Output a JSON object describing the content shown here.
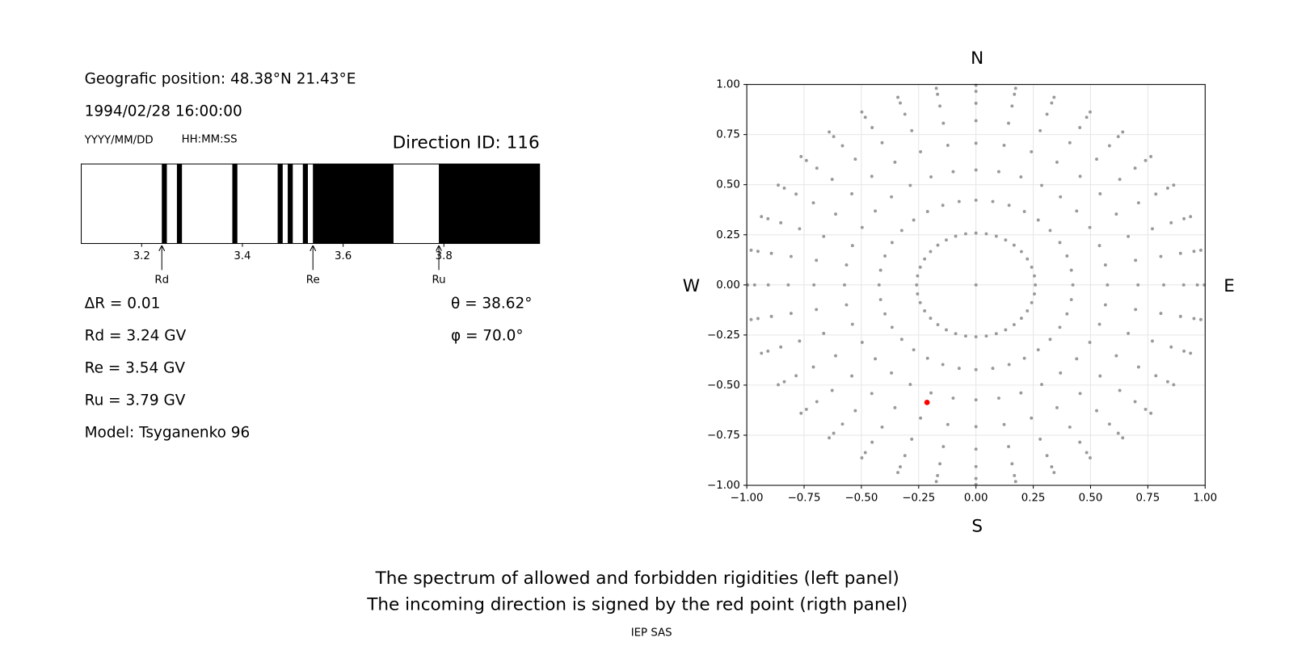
{
  "header": {
    "position": "Geografic position: 48.38°N 21.43°E",
    "datetime": "1994/02/28 16:00:00",
    "date_format": "YYYY/MM/DD",
    "time_format": "HH:MM:SS"
  },
  "parameters": [
    "ΔR = 0.01",
    "Rd = 3.24 GV",
    "Re = 3.54 GV",
    "Ru = 3.79 GV",
    "Model: Tsyganenko 96"
  ],
  "chart_data": [
    {
      "type": "spectrum",
      "title": "Direction ID: 116",
      "xlim": [
        3.08,
        3.99
      ],
      "xticks": [
        3.2,
        3.4,
        3.6,
        3.8
      ],
      "color": "#000000",
      "forbidden": [
        [
          3.24,
          3.25
        ],
        [
          3.27,
          3.28
        ],
        [
          3.38,
          3.39
        ],
        [
          3.47,
          3.48
        ],
        [
          3.49,
          3.5
        ],
        [
          3.52,
          3.53
        ],
        [
          3.54,
          3.7
        ],
        [
          3.79,
          3.99
        ]
      ],
      "markers": [
        {
          "label": "Rd",
          "value": 3.24
        },
        {
          "label": "Re",
          "value": 3.54
        },
        {
          "label": "Ru",
          "value": 3.79
        }
      ]
    },
    {
      "type": "sky",
      "directions": {
        "north": "N",
        "south": "S",
        "west": "W",
        "east": "E"
      },
      "info": [
        "θ = 38.62°",
        "φ = 70.0°"
      ],
      "grid": true,
      "xlim": [
        -1,
        1
      ],
      "ylim": [
        -1,
        1
      ],
      "xticks": [
        {
          "value": -1,
          "label": "−1.00"
        },
        {
          "value": -0.75,
          "label": "−0.75"
        },
        {
          "value": -0.5,
          "label": "−0.50"
        },
        {
          "value": -0.25,
          "label": "−0.25"
        },
        {
          "value": 0,
          "label": "0.00"
        },
        {
          "value": 0.25,
          "label": "0.25"
        },
        {
          "value": 0.5,
          "label": "0.50"
        },
        {
          "value": 0.75,
          "label": "0.75"
        },
        {
          "value": 1,
          "label": "1.00"
        }
      ],
      "yticks": [
        {
          "value": -1,
          "label": "−1.00"
        },
        {
          "value": -0.75,
          "label": "−0.75"
        },
        {
          "value": -0.5,
          "label": "−0.50"
        },
        {
          "value": -0.25,
          "label": "−0.25"
        },
        {
          "value": 0,
          "label": "0.00"
        },
        {
          "value": 0.25,
          "label": "0.25"
        },
        {
          "value": 0.5,
          "label": "0.50"
        },
        {
          "value": 0.75,
          "label": "0.75"
        },
        {
          "value": 1,
          "label": "1.00"
        }
      ],
      "series": [
        {
          "color": "#999999",
          "theta": [
            0,
            15,
            25,
            35,
            45,
            55,
            65,
            75,
            85,
            15,
            25,
            35,
            45,
            55,
            65,
            75,
            85,
            15,
            25,
            35,
            45,
            55,
            65,
            75,
            85,
            15,
            25,
            35,
            45,
            55,
            65,
            75,
            85,
            15,
            25,
            35,
            45,
            55,
            65,
            75,
            85,
            15,
            25,
            35,
            45,
            55,
            65,
            75,
            85,
            15,
            25,
            35,
            45,
            55,
            65,
            75,
            85,
            15,
            25,
            35,
            45,
            55,
            65,
            75,
            85,
            15,
            25,
            35,
            45,
            55,
            65,
            75,
            85,
            15,
            25,
            35,
            45,
            55,
            65,
            75,
            85,
            15,
            25,
            35,
            45,
            55,
            65,
            75,
            85,
            15,
            25,
            35,
            45,
            55,
            65,
            75,
            85,
            15,
            25,
            35,
            45,
            55,
            65,
            75,
            85,
            15,
            25,
            35,
            45,
            55,
            65,
            75,
            85,
            15,
            25,
            35,
            45,
            55,
            65,
            75,
            85,
            15,
            25,
            35,
            45,
            55,
            65,
            75,
            85,
            15,
            25,
            35,
            45,
            55,
            65,
            75,
            85,
            15,
            25,
            35,
            45,
            55,
            65,
            75,
            85,
            15,
            25,
            35,
            45,
            55,
            65,
            75,
            85,
            15,
            25,
            35,
            45,
            55,
            65,
            75,
            85,
            15,
            25,
            35,
            45,
            55,
            65,
            75,
            85,
            15,
            25,
            35,
            45,
            55,
            65,
            75,
            85,
            15,
            25,
            35,
            45,
            55,
            65,
            75,
            85,
            15,
            25,
            35,
            45,
            55,
            65,
            75,
            85,
            15,
            25,
            35,
            45,
            55,
            65,
            75,
            85,
            15,
            25,
            35,
            45,
            55,
            65,
            75,
            85,
            15,
            25,
            35,
            45,
            55,
            65,
            75,
            85,
            15,
            25,
            35,
            45,
            55,
            65,
            75,
            85,
            15,
            25,
            35,
            45,
            55,
            65,
            75,
            85,
            15,
            25,
            35,
            45,
            55,
            65,
            75,
            85,
            15,
            25,
            35,
            45,
            55,
            65,
            75,
            85,
            15,
            25,
            35,
            45,
            55,
            65,
            75,
            85,
            15,
            25,
            35,
            45,
            55,
            65,
            75,
            85,
            15,
            25,
            35,
            45,
            55,
            65,
            75,
            85,
            15,
            25,
            35,
            45,
            55,
            65,
            75,
            85,
            15,
            25,
            35,
            45,
            55,
            65,
            75,
            85
          ],
          "phi": [
            0,
            0,
            0,
            0,
            0,
            0,
            0,
            0,
            0,
            10,
            10,
            10,
            10,
            10,
            10,
            10,
            10,
            20,
            20,
            20,
            20,
            20,
            20,
            20,
            20,
            30,
            30,
            30,
            30,
            30,
            30,
            30,
            30,
            40,
            40,
            40,
            40,
            40,
            40,
            40,
            40,
            50,
            50,
            50,
            50,
            50,
            50,
            50,
            50,
            60,
            60,
            60,
            60,
            60,
            60,
            60,
            60,
            70,
            70,
            70,
            70,
            70,
            70,
            70,
            70,
            80,
            80,
            80,
            80,
            80,
            80,
            80,
            80,
            90,
            90,
            90,
            90,
            90,
            90,
            90,
            90,
            100,
            100,
            100,
            100,
            100,
            100,
            100,
            100,
            110,
            110,
            110,
            110,
            110,
            110,
            110,
            110,
            120,
            120,
            120,
            120,
            120,
            120,
            120,
            120,
            130,
            130,
            130,
            130,
            130,
            130,
            130,
            130,
            140,
            140,
            140,
            140,
            140,
            140,
            140,
            140,
            150,
            150,
            150,
            150,
            150,
            150,
            150,
            150,
            160,
            160,
            160,
            160,
            160,
            160,
            160,
            160,
            170,
            170,
            170,
            170,
            170,
            170,
            170,
            170,
            180,
            180,
            180,
            180,
            180,
            180,
            180,
            180,
            190,
            190,
            190,
            190,
            190,
            190,
            190,
            190,
            200,
            200,
            200,
            200,
            200,
            200,
            200,
            200,
            210,
            210,
            210,
            210,
            210,
            210,
            210,
            210,
            220,
            220,
            220,
            220,
            220,
            220,
            220,
            220,
            230,
            230,
            230,
            230,
            230,
            230,
            230,
            230,
            240,
            240,
            240,
            240,
            240,
            240,
            240,
            240,
            250,
            250,
            250,
            250,
            250,
            250,
            250,
            250,
            260,
            260,
            260,
            260,
            260,
            260,
            260,
            260,
            270,
            270,
            270,
            270,
            270,
            270,
            270,
            270,
            280,
            280,
            280,
            280,
            280,
            280,
            280,
            280,
            290,
            290,
            290,
            290,
            290,
            290,
            290,
            290,
            300,
            300,
            300,
            300,
            300,
            300,
            300,
            300,
            310,
            310,
            310,
            310,
            310,
            310,
            310,
            310,
            320,
            320,
            320,
            320,
            320,
            320,
            320,
            320,
            330,
            330,
            330,
            330,
            330,
            330,
            330,
            330,
            340,
            340,
            340,
            340,
            340,
            340,
            340,
            340,
            350,
            350,
            350,
            350,
            350,
            350,
            350,
            350
          ]
        },
        {
          "color": "#ff0000",
          "theta": [
            38.62
          ],
          "phi": [
            70.0
          ]
        }
      ]
    }
  ],
  "caption": [
    "The spectrum of allowed and forbidden rigidities (left panel)",
    "The incoming direction is signed by the red point (rigth panel)"
  ],
  "footer": "IEP SAS"
}
